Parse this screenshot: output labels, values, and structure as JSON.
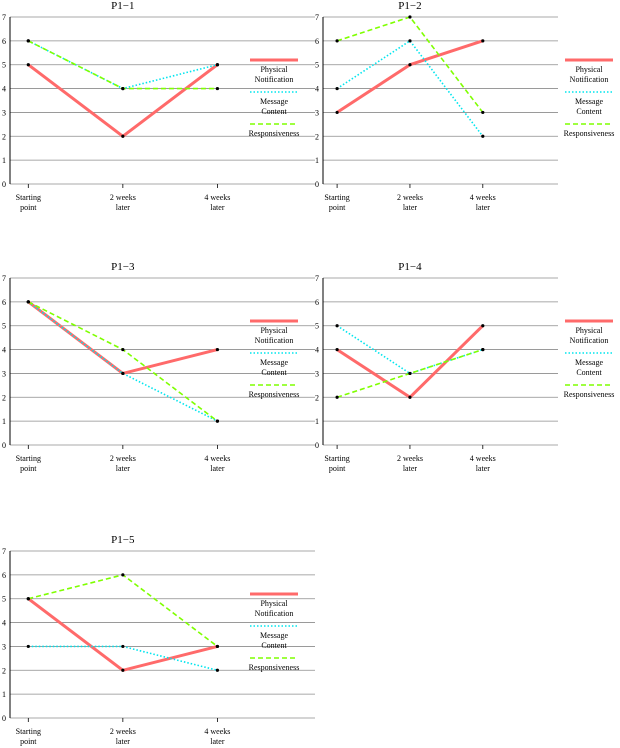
{
  "legend": {
    "series_labels": [
      [
        "Physical",
        "Notification"
      ],
      [
        "Message",
        "Content"
      ],
      [
        "Responsiveness"
      ]
    ]
  },
  "chart_data": [
    {
      "type": "line",
      "title": "P1−1",
      "categories": [
        [
          "Starting",
          "point"
        ],
        [
          "2 weeks",
          "later"
        ],
        [
          "4 weeks",
          "later"
        ]
      ],
      "ylim": [
        0,
        7
      ],
      "yticks": [
        0,
        1,
        2,
        3,
        4,
        5,
        6,
        7
      ],
      "grid": true,
      "legend_position": "right",
      "series": [
        {
          "name": "Physical Notification",
          "color": "#ff6a6a",
          "style": "solid",
          "values": [
            5,
            2,
            5
          ]
        },
        {
          "name": "Message Content",
          "color": "#00e5ee",
          "style": "dotted",
          "values": [
            6,
            4,
            5
          ]
        },
        {
          "name": "Responsiveness",
          "color": "#7fff00",
          "style": "dashed",
          "values": [
            6,
            4,
            4
          ]
        }
      ]
    },
    {
      "type": "line",
      "title": "P1−2",
      "categories": [
        [
          "Starting",
          "point"
        ],
        [
          "2 weeks",
          "later"
        ],
        [
          "4 weeks",
          "later"
        ]
      ],
      "ylim": [
        0,
        7
      ],
      "yticks": [
        0,
        1,
        2,
        3,
        4,
        5,
        6,
        7
      ],
      "grid": true,
      "legend_position": "right",
      "series": [
        {
          "name": "Physical Notification",
          "color": "#ff6a6a",
          "style": "solid",
          "values": [
            3,
            5,
            6
          ]
        },
        {
          "name": "Message Content",
          "color": "#00e5ee",
          "style": "dotted",
          "values": [
            4,
            6,
            2
          ]
        },
        {
          "name": "Responsiveness",
          "color": "#7fff00",
          "style": "dashed",
          "values": [
            6,
            7,
            3
          ]
        }
      ]
    },
    {
      "type": "line",
      "title": "P1−3",
      "categories": [
        [
          "Starting",
          "point"
        ],
        [
          "2 weeks",
          "later"
        ],
        [
          "4 weeks",
          "later"
        ]
      ],
      "ylim": [
        0,
        7
      ],
      "yticks": [
        0,
        1,
        2,
        3,
        4,
        5,
        6,
        7
      ],
      "grid": true,
      "legend_position": "right",
      "series": [
        {
          "name": "Physical Notification",
          "color": "#ff6a6a",
          "style": "solid",
          "values": [
            6,
            3,
            4
          ]
        },
        {
          "name": "Message Content",
          "color": "#00e5ee",
          "style": "dotted",
          "values": [
            6,
            3,
            1
          ]
        },
        {
          "name": "Responsiveness",
          "color": "#7fff00",
          "style": "dashed",
          "values": [
            6,
            4,
            1
          ]
        }
      ]
    },
    {
      "type": "line",
      "title": "P1−4",
      "categories": [
        [
          "Starting",
          "point"
        ],
        [
          "2 weeks",
          "later"
        ],
        [
          "4 weeks",
          "later"
        ]
      ],
      "ylim": [
        0,
        7
      ],
      "yticks": [
        0,
        1,
        2,
        3,
        4,
        5,
        6,
        7
      ],
      "grid": true,
      "legend_position": "right",
      "series": [
        {
          "name": "Physical Notification",
          "color": "#ff6a6a",
          "style": "solid",
          "values": [
            4,
            2,
            5
          ]
        },
        {
          "name": "Message Content",
          "color": "#00e5ee",
          "style": "dotted",
          "values": [
            5,
            3,
            4
          ]
        },
        {
          "name": "Responsiveness",
          "color": "#7fff00",
          "style": "dashed",
          "values": [
            2,
            3,
            4
          ]
        }
      ]
    },
    {
      "type": "line",
      "title": "P1−5",
      "categories": [
        [
          "Starting",
          "point"
        ],
        [
          "2 weeks",
          "later"
        ],
        [
          "4 weeks",
          "later"
        ]
      ],
      "ylim": [
        0,
        7
      ],
      "yticks": [
        0,
        1,
        2,
        3,
        4,
        5,
        6,
        7
      ],
      "grid": true,
      "legend_position": "right",
      "series": [
        {
          "name": "Physical Notification",
          "color": "#ff6a6a",
          "style": "solid",
          "values": [
            5,
            2,
            3
          ]
        },
        {
          "name": "Message Content",
          "color": "#00e5ee",
          "style": "dotted",
          "values": [
            3,
            3,
            2
          ]
        },
        {
          "name": "Responsiveness",
          "color": "#7fff00",
          "style": "dashed",
          "values": [
            5,
            6,
            3
          ]
        }
      ]
    }
  ]
}
